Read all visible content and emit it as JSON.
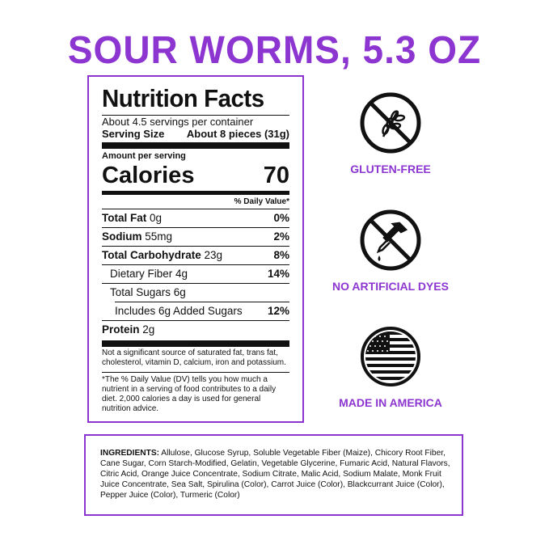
{
  "title": "SOUR WORMS, 5.3 OZ",
  "nutrition": {
    "heading": "Nutrition Facts",
    "servings": "About 4.5 servings per container",
    "serving_size_label": "Serving Size",
    "serving_size_value": "About 8 pieces (31g)",
    "amount_per_serving": "Amount per serving",
    "calories_label": "Calories",
    "calories_value": "70",
    "dv_header": "% Daily Value*",
    "rows": [
      {
        "label": "Total Fat",
        "amount": "0g",
        "dv": "0%"
      },
      {
        "label": "Sodium",
        "amount": "55mg",
        "dv": "2%"
      },
      {
        "label": "Total Carbohydrate",
        "amount": "23g",
        "dv": "8%"
      },
      {
        "label": "Dietary Fiber 4g",
        "amount": "",
        "dv": "14%"
      },
      {
        "label": "Total Sugars 6g",
        "amount": "",
        "dv": ""
      },
      {
        "label": "Includes 6g Added Sugars",
        "amount": "",
        "dv": "12%"
      },
      {
        "label": "Protein",
        "amount": "2g",
        "dv": ""
      }
    ],
    "not_significant": "Not a significant source of saturated fat, trans fat, cholesterol, vitamin D, calcium, iron and potassium.",
    "footnote": "*The % Daily Value (DV) tells you how much a nutrient in a serving of food contributes to a daily diet. 2,000 calories a day is used for general nutrition advice."
  },
  "badges": [
    {
      "icon": "no-wheat-icon",
      "label": "GLUTEN-FREE"
    },
    {
      "icon": "no-dropper-icon",
      "label": "NO ARTIFICIAL DYES"
    },
    {
      "icon": "us-flag-icon",
      "label": "MADE IN AMERICA"
    }
  ],
  "ingredients": {
    "label": "INGREDIENTS:",
    "text": " Allulose, Glucose Syrup, Soluble Vegetable Fiber (Maize), Chicory Root Fiber, Cane Sugar, Corn Starch-Modified, Gelatin, Vegetable Glycerine, Fumaric Acid, Natural Flavors, Citric Acid, Orange Juice Concentrate, Sodium Citrate, Malic Acid, Sodium Malate, Monk Fruit Juice Concentrate, Sea Salt, Spirulina (Color), Carrot Juice (Color), Blackcurrant Juice (Color), Pepper Juice (Color), Turmeric (Color)"
  },
  "colors": {
    "accent": "#8c35d0"
  }
}
